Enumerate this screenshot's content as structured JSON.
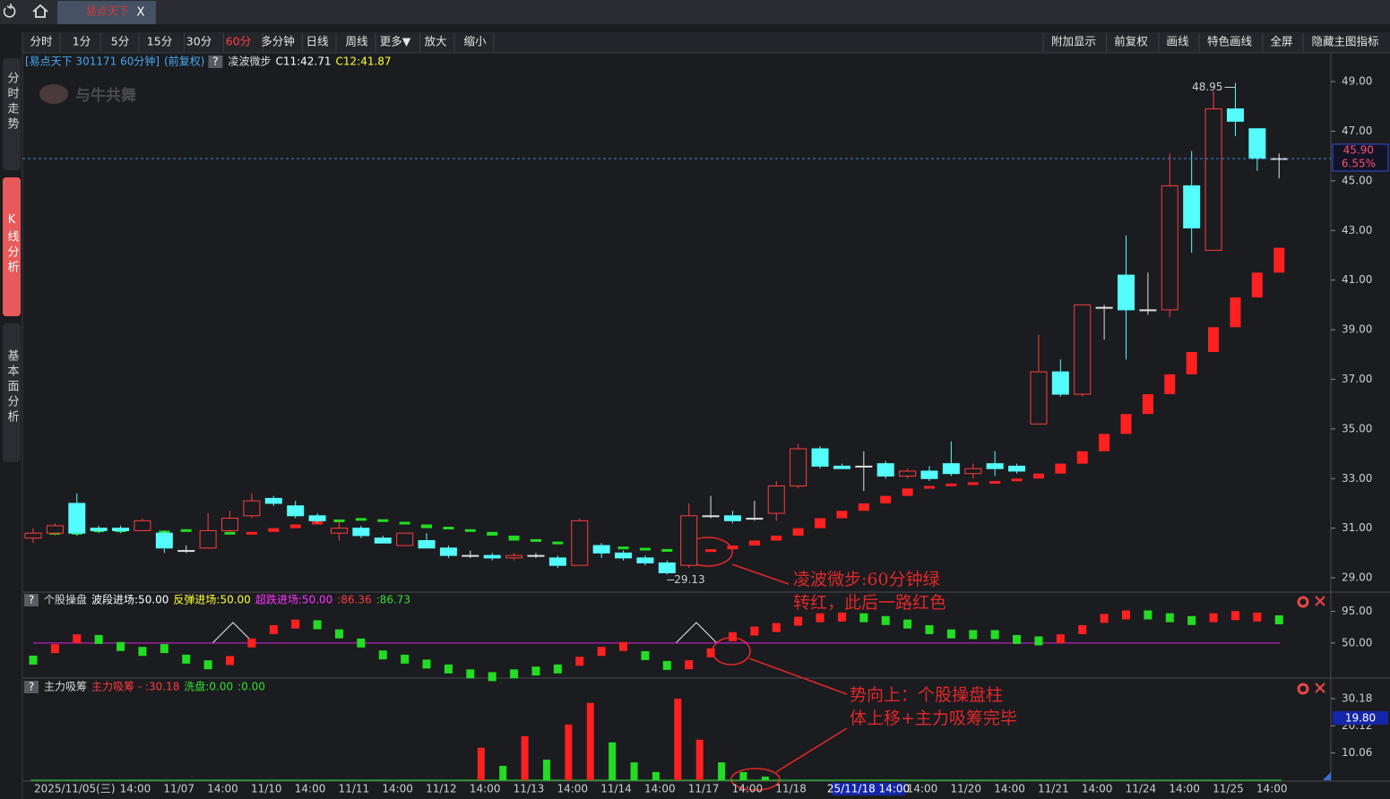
{
  "tab": {
    "label": "易点天下",
    "close": "X"
  },
  "toolbar": {
    "left": [
      "分时",
      "1分",
      "5分",
      "15分",
      "30分",
      "60分",
      "多分钟",
      "日线",
      "周线",
      "更多▼",
      "放大",
      "缩小"
    ],
    "active": "60分",
    "right": [
      "附加显示",
      "前复权",
      "画线",
      "特色画线",
      "全屏",
      "隐藏主图指标"
    ]
  },
  "sidebar": [
    "分时走势",
    "K线分析",
    "基本面分析"
  ],
  "sidebar_active": "K线分析",
  "watermark": "与牛共舞",
  "cursor_time_label": "25/11/18 14:00",
  "chart_data": [
    {
      "type": "candlestick",
      "title": "[易点天下 301171 60分钟]",
      "subtitle": "(前复权)",
      "help": "?",
      "indicator_labels": [
        {
          "text": "C11:42.71",
          "color": "#ffffff"
        },
        {
          "text": "C12:41.87",
          "color": "#ffff33"
        }
      ],
      "categories": [
        "2025/11/05(三)",
        null,
        null,
        null,
        null,
        "14:00",
        null,
        "11/07",
        null,
        "14:00",
        null,
        "11/10",
        null,
        "14:00",
        null,
        "11/11",
        null,
        "14:00",
        null,
        "11/12",
        null,
        "14:00",
        null,
        "11/13",
        null,
        "14:00",
        null,
        "11/14",
        null,
        "14:00",
        null,
        "11/17",
        null,
        "14:00",
        null,
        "11/18",
        null,
        null,
        null,
        null,
        null,
        "14:00",
        null,
        "11/20",
        null,
        "14:00",
        null,
        "11/21",
        null,
        "14:00",
        null,
        "11/24",
        null,
        "14:00",
        null,
        "11/25",
        null,
        "14:00"
      ],
      "open": [
        30.6,
        30.8,
        32.0,
        31.0,
        31.0,
        30.9,
        30.8,
        30.1,
        30.2,
        30.9,
        31.5,
        32.2,
        31.9,
        31.5,
        30.8,
        31.0,
        30.6,
        30.3,
        30.5,
        30.2,
        29.9,
        29.9,
        29.8,
        29.9,
        29.8,
        29.5,
        30.3,
        30.0,
        29.8,
        29.6,
        29.5,
        31.5,
        31.5,
        31.4,
        31.6,
        32.7,
        34.2,
        33.5,
        33.5,
        33.6,
        33.1,
        33.3,
        33.6,
        33.2,
        33.6,
        33.5,
        35.2,
        37.3,
        36.4,
        39.9,
        41.2,
        39.8,
        39.8,
        44.8,
        42.2,
        47.9,
        47.1,
        45.9
      ],
      "high": [
        31.0,
        31.2,
        32.4,
        31.1,
        31.1,
        31.4,
        30.9,
        30.3,
        31.6,
        31.7,
        32.4,
        32.3,
        32.1,
        31.6,
        31.3,
        31.1,
        30.7,
        30.8,
        30.8,
        30.3,
        30.1,
        30.0,
        30.0,
        30.0,
        29.9,
        31.4,
        30.4,
        30.1,
        29.9,
        29.7,
        32.0,
        32.3,
        31.7,
        32.1,
        32.9,
        34.4,
        34.3,
        33.6,
        34.1,
        33.7,
        33.4,
        33.5,
        34.5,
        33.6,
        34.1,
        33.6,
        38.8,
        37.8,
        40.0,
        40.0,
        42.8,
        41.3,
        46.1,
        46.2,
        48.6,
        48.95,
        47.1,
        46.1
      ],
      "low": [
        30.4,
        30.7,
        30.7,
        30.8,
        30.8,
        30.9,
        30.0,
        30.0,
        30.2,
        30.8,
        31.4,
        31.9,
        31.4,
        31.2,
        30.5,
        30.6,
        30.4,
        30.3,
        30.2,
        29.8,
        29.8,
        29.7,
        29.7,
        29.8,
        29.4,
        29.5,
        29.8,
        29.7,
        29.5,
        29.13,
        29.4,
        31.4,
        31.2,
        31.3,
        31.3,
        32.6,
        33.4,
        33.4,
        32.5,
        33.0,
        33.0,
        32.9,
        33.1,
        33.0,
        33.1,
        33.2,
        35.2,
        36.3,
        36.3,
        38.6,
        37.8,
        39.6,
        39.5,
        42.1,
        42.2,
        46.8,
        45.4,
        45.1
      ],
      "close": [
        30.8,
        31.1,
        30.8,
        30.9,
        30.9,
        31.3,
        30.2,
        30.1,
        30.9,
        31.4,
        32.1,
        32.0,
        31.5,
        31.3,
        31.0,
        30.7,
        30.4,
        30.8,
        30.2,
        29.9,
        29.9,
        29.8,
        29.9,
        29.9,
        29.5,
        31.3,
        30.0,
        29.8,
        29.6,
        29.2,
        31.5,
        31.5,
        31.3,
        31.4,
        32.7,
        34.2,
        33.5,
        33.4,
        33.5,
        33.1,
        33.3,
        33.0,
        33.2,
        33.4,
        33.4,
        33.3,
        37.3,
        36.4,
        40.0,
        39.9,
        39.8,
        39.8,
        44.8,
        43.1,
        47.9,
        47.4,
        45.9,
        45.9
      ],
      "up_color": "#ff3c3c",
      "down_color": "#54fcfc",
      "flat_color": "#e0e0e0",
      "series": [
        {
          "name": "凌波微步",
          "values": [
            30.8,
            30.85,
            30.85,
            30.95,
            30.95,
            30.9,
            30.9,
            30.85,
            30.85,
            30.85,
            30.85,
            31.0,
            31.15,
            31.3,
            31.35,
            31.3,
            31.25,
            31.15,
            31.0,
            30.95,
            30.85,
            30.7,
            30.5,
            30.45,
            30.35,
            30.3,
            30.2,
            30.15,
            30.1,
            30.05,
            30.05,
            30.15,
            30.3,
            30.5,
            30.7,
            31.0,
            31.4,
            31.7,
            32.0,
            32.3,
            32.6,
            32.7,
            32.8,
            32.85,
            32.9,
            33.0,
            33.2,
            33.6,
            34.1,
            34.8,
            35.6,
            36.4,
            37.2,
            38.1,
            39.1,
            40.3,
            41.3,
            42.3
          ],
          "colors": [
            "#22dd22",
            "#22dd22",
            "#22dd22",
            "#22dd22",
            "#22dd22",
            "#22dd22",
            "#22dd22",
            "#22dd22",
            "#22dd22",
            "#22dd22",
            "#ff2020",
            "#ff2020",
            "#ff2020",
            "#ff2020",
            "#22dd22",
            "#22dd22",
            "#22dd22",
            "#22dd22",
            "#22dd22",
            "#22dd22",
            "#22dd22",
            "#22dd22",
            "#22dd22",
            "#22dd22",
            "#22dd22",
            "#22dd22",
            "#22dd22",
            "#22dd22",
            "#22dd22",
            "#22dd22",
            "#22dd22",
            "#ff2020",
            "#ff2020",
            "#ff2020",
            "#ff2020",
            "#ff2020",
            "#ff2020",
            "#ff2020",
            "#ff2020",
            "#ff2020",
            "#ff2020",
            "#ff2020",
            "#ff2020",
            "#ff2020",
            "#ff2020",
            "#ff2020",
            "#ff2020",
            "#ff2020",
            "#ff2020",
            "#ff2020",
            "#ff2020",
            "#ff2020",
            "#ff2020",
            "#ff2020",
            "#ff2020",
            "#ff2020",
            "#ff2020",
            "#ff2020"
          ]
        }
      ],
      "ylim": [
        28.46,
        49.4
      ],
      "yticks": [
        {
          "value": 29,
          "label": "29.00"
        },
        {
          "value": 31,
          "label": "31.00"
        },
        {
          "value": 33,
          "label": "33.00"
        },
        {
          "value": 35,
          "label": "35.00"
        },
        {
          "value": 37,
          "label": "37.00"
        },
        {
          "value": 39,
          "label": "39.00"
        },
        {
          "value": 41,
          "label": "41.00"
        },
        {
          "value": 43,
          "label": "43.00"
        },
        {
          "value": 45,
          "label": "45.00"
        },
        {
          "value": 47,
          "label": "47.00"
        },
        {
          "value": 49,
          "label": "49.00"
        }
      ],
      "last_price": {
        "value": 45.9,
        "label": "45.90"
      },
      "last_change": "6.55%",
      "annotations": [
        "凌波微步:60分钟绿",
        "转红，此后一路红色",
        "势向上：个股操盘柱",
        "体上移+主力吸筹完毕"
      ]
    },
    {
      "type": "marker",
      "title": "个股操盘",
      "help": "?",
      "legend": [
        {
          "text": "波段进场:50.00",
          "color": "#ffffff"
        },
        {
          "text": "反弹进场:50.00",
          "color": "#ffff33"
        },
        {
          "text": "超跌进场:50.00",
          "color": "#ff33ff"
        },
        {
          "text": ":86.36",
          "color": "#ff3c3c"
        },
        {
          "text": ":86.73",
          "color": "#33e033"
        }
      ],
      "values": [
        25.6,
        42,
        56,
        55,
        45,
        38,
        42,
        27,
        19,
        25,
        50,
        69,
        77,
        76,
        63,
        50,
        33,
        27,
        20,
        13,
        6,
        2,
        6,
        10,
        13,
        24,
        38,
        45,
        32,
        18,
        19,
        36,
        59,
        67,
        72,
        81,
        86,
        87,
        86,
        82,
        77,
        69,
        63,
        62,
        62,
        55,
        53,
        56,
        69,
        85,
        90,
        90,
        86,
        82,
        86,
        89,
        87,
        83
      ],
      "colors": [
        "#22dd22",
        "#ff2020",
        "#ff2020",
        "#22dd22",
        "#22dd22",
        "#22dd22",
        "#22dd22",
        "#22dd22",
        "#22dd22",
        "#ff2020",
        "#ff2020",
        "#ff2020",
        "#ff2020",
        "#22dd22",
        "#22dd22",
        "#22dd22",
        "#22dd22",
        "#22dd22",
        "#22dd22",
        "#22dd22",
        "#22dd22",
        "#22dd22",
        "#22dd22",
        "#22dd22",
        "#22dd22",
        "#ff2020",
        "#ff2020",
        "#ff2020",
        "#22dd22",
        "#22dd22",
        "#ff2020",
        "#ff2020",
        "#ff2020",
        "#ff2020",
        "#ff2020",
        "#ff2020",
        "#ff2020",
        "#ff2020",
        "#22dd22",
        "#22dd22",
        "#22dd22",
        "#22dd22",
        "#22dd22",
        "#22dd22",
        "#22dd22",
        "#22dd22",
        "#22dd22",
        "#ff2020",
        "#ff2020",
        "#ff2020",
        "#ff2020",
        "#22dd22",
        "#22dd22",
        "#22dd22",
        "#ff2020",
        "#ff2020",
        "#ff2020",
        "#22dd22"
      ],
      "level": 50,
      "level_color": "#e020e0",
      "ylim": [
        0,
        120
      ],
      "yticks": [
        {
          "value": 50,
          "label": "50.00"
        },
        {
          "value": 95,
          "label": "95.00"
        }
      ]
    },
    {
      "type": "bar",
      "title": "主力吸筹",
      "help": "?",
      "legend": [
        {
          "text": "主力吸筹 - :30.18",
          "color": "#ff3c3c"
        },
        {
          "text": "洗盘:0.00",
          "color": "#33e033"
        },
        {
          "text": ":0.00",
          "color": "#33e033"
        }
      ],
      "values": [
        0,
        0,
        0,
        0,
        0,
        0,
        0,
        0,
        0,
        0,
        0,
        0,
        0,
        0,
        0,
        0,
        0,
        0,
        0,
        0,
        12,
        5.3,
        16.3,
        7.6,
        20.6,
        28.6,
        14,
        6.6,
        3,
        30.18,
        15,
        6.6,
        3,
        1.3,
        0,
        0,
        0,
        0,
        0,
        0,
        0,
        0,
        0,
        0,
        0,
        0,
        0,
        0,
        0,
        0,
        0,
        0,
        0,
        0,
        0,
        0,
        0,
        0
      ],
      "colors": [
        "#22dd22",
        "#22dd22",
        "#22dd22",
        "#22dd22",
        "#22dd22",
        "#22dd22",
        "#22dd22",
        "#22dd22",
        "#22dd22",
        "#22dd22",
        "#22dd22",
        "#22dd22",
        "#22dd22",
        "#22dd22",
        "#22dd22",
        "#22dd22",
        "#22dd22",
        "#22dd22",
        "#22dd22",
        "#22dd22",
        "#ff2020",
        "#22dd22",
        "#ff2020",
        "#22dd22",
        "#ff2020",
        "#ff2020",
        "#22dd22",
        "#22dd22",
        "#22dd22",
        "#ff2020",
        "#ff2020",
        "#22dd22",
        "#22dd22",
        "#22dd22",
        "#22dd22",
        "#22dd22",
        "#22dd22",
        "#22dd22",
        "#22dd22",
        "#22dd22",
        "#22dd22",
        "#22dd22",
        "#22dd22",
        "#22dd22",
        "#22dd22",
        "#22dd22",
        "#22dd22",
        "#22dd22",
        "#22dd22",
        "#22dd22",
        "#22dd22",
        "#22dd22",
        "#22dd22",
        "#22dd22",
        "#22dd22",
        "#22dd22",
        "#22dd22",
        "#22dd22"
      ],
      "ylim": [
        0,
        36.8
      ],
      "yticks": [
        10.06,
        20.12,
        30.18
      ],
      "cursor_label": "19.80"
    }
  ]
}
